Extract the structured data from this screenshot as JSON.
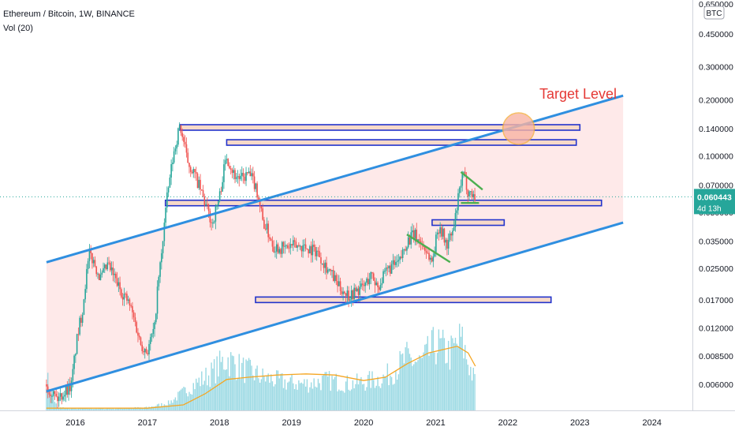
{
  "header": {
    "symbol_line": "Ethereum / Bitcoin, 1W, BINANCE",
    "indicator": "Vol (20)"
  },
  "colors": {
    "up": "#26a69a",
    "down": "#ef5350",
    "channel_line": "#2f8fe0",
    "channel_fill": "#fde2e2",
    "level_box_stroke": "#2233cc",
    "level_box_fill": "#f7d9c8",
    "volume": "#9ad9e3",
    "volume_ma": "#f5a623",
    "target_text": "#e53935",
    "target_circle": "#f8b4a4",
    "pattern": "#4caf50",
    "price_badge": "#26a69a"
  },
  "chart_data": {
    "type": "candlestick",
    "title": "Ethereum / Bitcoin, 1W, BINANCE",
    "y_scale": "log",
    "y_ticks": [
      "0.650000",
      "0.450000",
      "0.300000",
      "0.200000",
      "0.140000",
      "0.100000",
      "0.070000",
      "0.050000",
      "0.035000",
      "0.025000",
      "0.017000",
      "0.012000",
      "0.008500",
      "0.006000"
    ],
    "y_tick_values": [
      0.65,
      0.45,
      0.3,
      0.2,
      0.14,
      0.1,
      0.07,
      0.05,
      0.035,
      0.025,
      0.017,
      0.012,
      0.0085,
      0.006
    ],
    "x_ticks": [
      "2016",
      "2017",
      "2018",
      "2019",
      "2020",
      "2021",
      "2022",
      "2023",
      "2024"
    ],
    "x_tick_values": [
      2016,
      2017,
      2018,
      2019,
      2020,
      2021,
      2022,
      2023,
      2024
    ],
    "currency_badge": "BTC",
    "last_price": "0.060443",
    "countdown": "4d 13h",
    "last_price_value": 0.060443,
    "annotation": "Target Level",
    "price_path": [
      [
        2015.6,
        0.006
      ],
      [
        2015.75,
        0.005
      ],
      [
        2015.95,
        0.006
      ],
      [
        2016.1,
        0.015
      ],
      [
        2016.2,
        0.03
      ],
      [
        2016.35,
        0.022
      ],
      [
        2016.45,
        0.026
      ],
      [
        2016.6,
        0.02
      ],
      [
        2016.75,
        0.016
      ],
      [
        2016.9,
        0.01
      ],
      [
        2017.0,
        0.009
      ],
      [
        2017.1,
        0.012
      ],
      [
        2017.2,
        0.03
      ],
      [
        2017.3,
        0.07
      ],
      [
        2017.45,
        0.145
      ],
      [
        2017.55,
        0.095
      ],
      [
        2017.65,
        0.08
      ],
      [
        2017.8,
        0.055
      ],
      [
        2017.9,
        0.043
      ],
      [
        2018.0,
        0.06
      ],
      [
        2018.1,
        0.1
      ],
      [
        2018.2,
        0.08
      ],
      [
        2018.3,
        0.075
      ],
      [
        2018.4,
        0.08
      ],
      [
        2018.5,
        0.07
      ],
      [
        2018.6,
        0.045
      ],
      [
        2018.75,
        0.033
      ],
      [
        2018.9,
        0.032
      ],
      [
        2019.0,
        0.033
      ],
      [
        2019.15,
        0.033
      ],
      [
        2019.35,
        0.031
      ],
      [
        2019.5,
        0.025
      ],
      [
        2019.65,
        0.02
      ],
      [
        2019.8,
        0.018
      ],
      [
        2019.9,
        0.019
      ],
      [
        2020.0,
        0.02
      ],
      [
        2020.1,
        0.023
      ],
      [
        2020.2,
        0.02
      ],
      [
        2020.35,
        0.025
      ],
      [
        2020.5,
        0.027
      ],
      [
        2020.6,
        0.035
      ],
      [
        2020.7,
        0.038
      ],
      [
        2020.85,
        0.032
      ],
      [
        2020.95,
        0.027
      ],
      [
        2021.05,
        0.043
      ],
      [
        2021.15,
        0.033
      ],
      [
        2021.25,
        0.04
      ],
      [
        2021.3,
        0.055
      ],
      [
        2021.38,
        0.08
      ],
      [
        2021.45,
        0.065
      ],
      [
        2021.55,
        0.0604
      ]
    ],
    "volume_path": [
      [
        2015.6,
        0.35
      ],
      [
        2015.75,
        0.03
      ],
      [
        2016.0,
        0.02
      ],
      [
        2016.5,
        0.02
      ],
      [
        2017.0,
        0.03
      ],
      [
        2017.3,
        0.08
      ],
      [
        2017.6,
        0.25
      ],
      [
        2017.9,
        0.4
      ],
      [
        2018.1,
        0.55
      ],
      [
        2018.3,
        0.45
      ],
      [
        2018.6,
        0.35
      ],
      [
        2018.9,
        0.3
      ],
      [
        2019.2,
        0.28
      ],
      [
        2019.5,
        0.32
      ],
      [
        2019.8,
        0.28
      ],
      [
        2020.0,
        0.3
      ],
      [
        2020.3,
        0.35
      ],
      [
        2020.6,
        0.55
      ],
      [
        2020.8,
        0.5
      ],
      [
        2021.0,
        0.7
      ],
      [
        2021.2,
        0.6
      ],
      [
        2021.35,
        0.75
      ],
      [
        2021.5,
        0.4
      ],
      [
        2021.55,
        0.3
      ]
    ],
    "volume_ma_path": [
      [
        2015.6,
        0.02
      ],
      [
        2017.0,
        0.02
      ],
      [
        2017.5,
        0.05
      ],
      [
        2017.8,
        0.15
      ],
      [
        2018.1,
        0.28
      ],
      [
        2018.4,
        0.3
      ],
      [
        2018.8,
        0.32
      ],
      [
        2019.2,
        0.33
      ],
      [
        2019.6,
        0.32
      ],
      [
        2020.0,
        0.27
      ],
      [
        2020.3,
        0.3
      ],
      [
        2020.6,
        0.42
      ],
      [
        2020.9,
        0.52
      ],
      [
        2021.1,
        0.55
      ],
      [
        2021.3,
        0.58
      ],
      [
        2021.45,
        0.52
      ],
      [
        2021.55,
        0.4
      ]
    ],
    "channel_upper": [
      [
        2015.6,
        0.027
      ],
      [
        2023.6,
        0.21
      ]
    ],
    "channel_lower": [
      [
        2015.6,
        0.0055
      ],
      [
        2023.6,
        0.044
      ]
    ],
    "level_boxes": [
      {
        "x1": 2017.45,
        "x2": 2023.0,
        "y": 0.142
      },
      {
        "x1": 2018.1,
        "x2": 2022.95,
        "y": 0.118
      },
      {
        "x1": 2017.25,
        "x2": 2023.3,
        "y": 0.056
      },
      {
        "x1": 2020.95,
        "x2": 2021.95,
        "y": 0.044
      },
      {
        "x1": 2018.5,
        "x2": 2022.6,
        "y": 0.017
      }
    ],
    "pattern_lines": [
      [
        [
          2020.6,
          0.038
        ],
        [
          2021.2,
          0.027
        ]
      ],
      [
        [
          2021.35,
          0.082
        ],
        [
          2021.65,
          0.066
        ]
      ],
      [
        [
          2021.35,
          0.056
        ],
        [
          2021.6,
          0.056
        ]
      ]
    ],
    "target_point": [
      2022.15,
      0.14
    ]
  }
}
